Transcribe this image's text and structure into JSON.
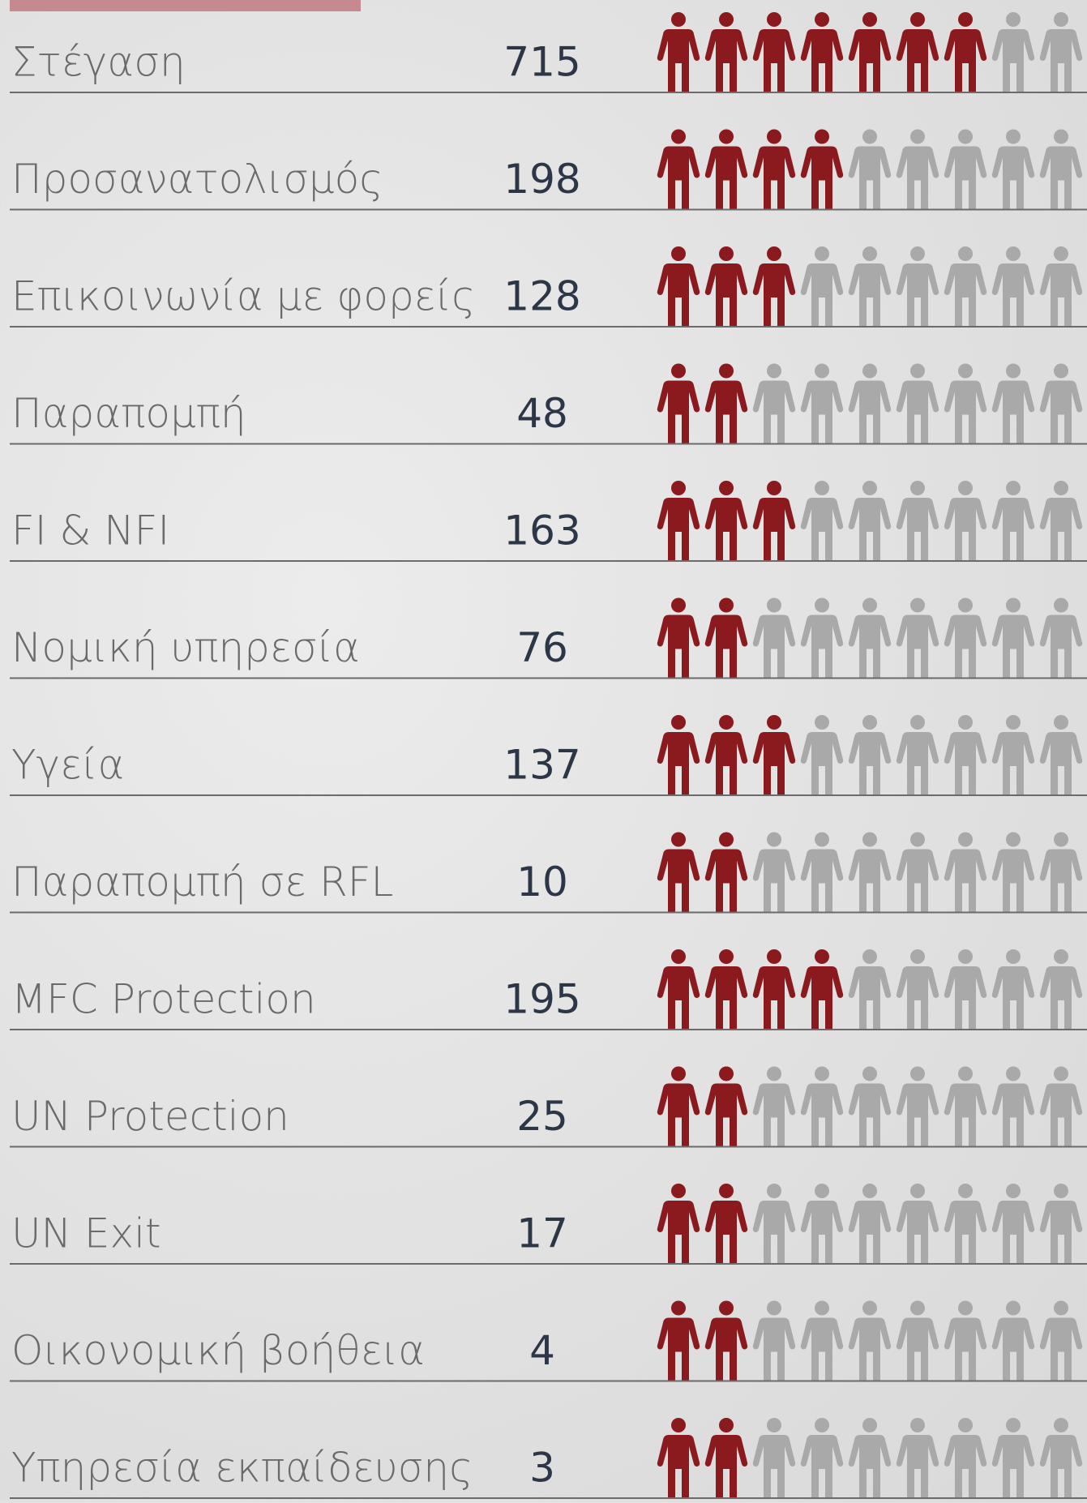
{
  "chart_data": {
    "type": "pictogram",
    "categories": [
      "Στέγαση",
      "Προσανατολισμός",
      "Επικοινωνία με φορείς",
      "Παραπομπή",
      "FI & NFI",
      "Νομική υπηρεσία",
      "Υγεία",
      "Παραπομπή σε RFL",
      "MFC Protection",
      "UN Protection",
      "UN Exit",
      "Οικονομική βοήθεια",
      "Υπηρεσία εκπαίδευσης"
    ],
    "values": [
      715,
      198,
      128,
      48,
      163,
      76,
      137,
      10,
      195,
      25,
      17,
      4,
      3
    ],
    "icons": [
      7,
      4,
      3,
      2,
      3,
      2,
      3,
      2,
      4,
      2,
      2,
      2,
      2
    ],
    "icon_total": 9,
    "color": "#8b1a1f",
    "empty_color": "#a9a9a9"
  }
}
